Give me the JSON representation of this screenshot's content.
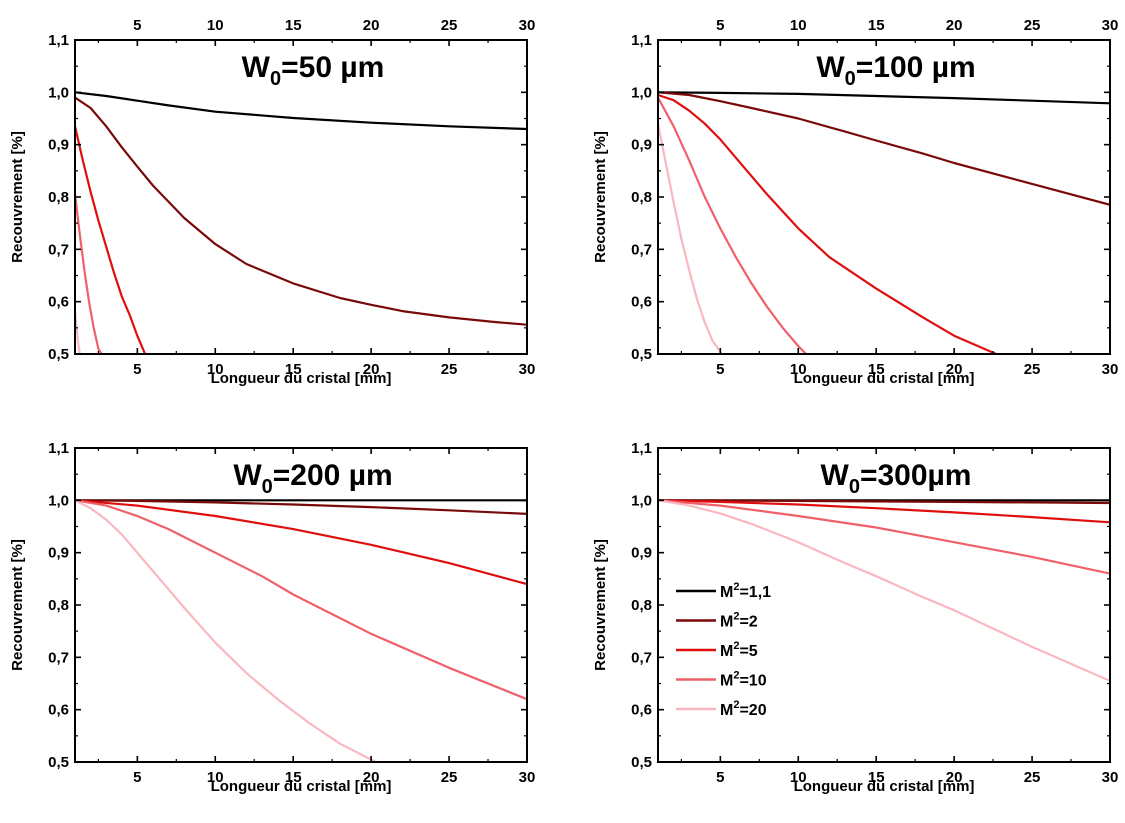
{
  "figure": {
    "xlabel": "Longueur du cristal [mm]",
    "ylabel": "Recouvrement [%]"
  },
  "legend": {
    "placement": "panel 4, left, middle",
    "entries": [
      {
        "base": "M",
        "sup": "2",
        "rest": "=1,1",
        "color": "#000000"
      },
      {
        "base": "M",
        "sup": "2",
        "rest": "=2",
        "color": "#7a0a0a"
      },
      {
        "base": "M",
        "sup": "2",
        "rest": "=5",
        "color": "#e00f0f"
      },
      {
        "base": "M",
        "sup": "2",
        "rest": "=10",
        "color": "#f0606a"
      },
      {
        "base": "M",
        "sup": "2",
        "rest": "=20",
        "color": "#f9b8c0"
      }
    ]
  },
  "chart_data": [
    {
      "type": "line",
      "title": {
        "base": "W",
        "sub": "0",
        "rest": "=50 µm"
      },
      "xlabel": "Longueur du cristal [mm]",
      "ylabel": "Recouvrement [%]",
      "xlim": [
        1,
        30
      ],
      "ylim": [
        0.5,
        1.1
      ],
      "xticks": [
        5,
        10,
        15,
        20,
        25,
        30
      ],
      "xtick_labels": [
        "5",
        "10",
        "15",
        "20",
        "25",
        "30"
      ],
      "top_xtick_labels": true,
      "yticks": [
        0.5,
        0.6,
        0.7,
        0.8,
        0.9,
        1.0,
        1.1
      ],
      "ytick_labels": [
        "0,5",
        "0,6",
        "0,7",
        "0,8",
        "0,9",
        "1,0",
        "1,1"
      ],
      "series": [
        {
          "name": "M²=1,1",
          "color": "#000000",
          "x": [
            1,
            3,
            5,
            7,
            10,
            15,
            20,
            25,
            30
          ],
          "y": [
            1.0,
            0.993,
            0.984,
            0.975,
            0.963,
            0.951,
            0.942,
            0.935,
            0.93
          ]
        },
        {
          "name": "M²=2",
          "color": "#7a0a0a",
          "x": [
            1,
            2,
            3,
            4,
            5,
            6,
            8,
            10,
            12,
            15,
            18,
            20,
            22,
            25,
            28,
            30
          ],
          "y": [
            0.99,
            0.97,
            0.935,
            0.895,
            0.858,
            0.822,
            0.76,
            0.71,
            0.672,
            0.635,
            0.607,
            0.594,
            0.582,
            0.57,
            0.561,
            0.556
          ]
        },
        {
          "name": "M²=5",
          "color": "#e00f0f",
          "x": [
            1,
            1.5,
            2,
            2.5,
            3,
            3.5,
            4,
            4.5,
            5,
            5.5
          ],
          "y": [
            0.935,
            0.87,
            0.81,
            0.755,
            0.705,
            0.655,
            0.61,
            0.575,
            0.535,
            0.5
          ]
        },
        {
          "name": "M²=10",
          "color": "#f0606a",
          "x": [
            1,
            1.3,
            1.6,
            1.9,
            2.2,
            2.5,
            2.7
          ],
          "y": [
            0.805,
            0.73,
            0.66,
            0.6,
            0.55,
            0.51,
            0.5
          ]
        },
        {
          "name": "M²=20",
          "color": "#f9b8c0",
          "x": [
            1,
            1.15,
            1.3
          ],
          "y": [
            0.58,
            0.535,
            0.5
          ]
        }
      ]
    },
    {
      "type": "line",
      "title": {
        "base": "W",
        "sub": "0",
        "rest": "=100 µm"
      },
      "xlabel": "Longueur du cristal [mm]",
      "ylabel": "Recouvrement [%]",
      "xlim": [
        1,
        30
      ],
      "ylim": [
        0.5,
        1.1
      ],
      "xticks": [
        5,
        10,
        15,
        20,
        25,
        30
      ],
      "xtick_labels": [
        "5",
        "10",
        "15",
        "20",
        "25",
        "30"
      ],
      "top_xtick_labels": true,
      "yticks": [
        0.5,
        0.6,
        0.7,
        0.8,
        0.9,
        1.0,
        1.1
      ],
      "ytick_labels": [
        "0,5",
        "0,6",
        "0,7",
        "0,8",
        "0,9",
        "1,0",
        "1,1"
      ],
      "series": [
        {
          "name": "M²=1,1",
          "color": "#000000",
          "x": [
            1,
            5,
            10,
            15,
            20,
            25,
            30
          ],
          "y": [
            1.0,
            0.999,
            0.997,
            0.993,
            0.989,
            0.984,
            0.979
          ]
        },
        {
          "name": "M²=2",
          "color": "#7a0a0a",
          "x": [
            1,
            3,
            5,
            7,
            10,
            13,
            15,
            18,
            20,
            25,
            30
          ],
          "y": [
            1.0,
            0.995,
            0.983,
            0.97,
            0.95,
            0.925,
            0.908,
            0.883,
            0.865,
            0.825,
            0.785
          ]
        },
        {
          "name": "M²=5",
          "color": "#e00f0f",
          "x": [
            1,
            2,
            3,
            4,
            5,
            6,
            8,
            10,
            12,
            15,
            18,
            20,
            22.7
          ],
          "y": [
            0.995,
            0.985,
            0.965,
            0.94,
            0.91,
            0.875,
            0.805,
            0.74,
            0.685,
            0.625,
            0.57,
            0.535,
            0.5
          ]
        },
        {
          "name": "M²=10",
          "color": "#f0606a",
          "x": [
            1,
            2,
            3,
            4,
            5,
            6,
            7,
            8,
            9,
            10,
            10.5
          ],
          "y": [
            0.99,
            0.935,
            0.87,
            0.8,
            0.74,
            0.685,
            0.635,
            0.59,
            0.55,
            0.515,
            0.5
          ]
        },
        {
          "name": "M²=20",
          "color": "#f9b8c0",
          "x": [
            1,
            1.5,
            2,
            2.5,
            3,
            3.5,
            4,
            4.5,
            5.1
          ],
          "y": [
            0.94,
            0.865,
            0.79,
            0.72,
            0.66,
            0.605,
            0.56,
            0.525,
            0.5
          ]
        }
      ]
    },
    {
      "type": "line",
      "title": {
        "base": "W",
        "sub": "0",
        "rest": "=200 µm"
      },
      "xlabel": "Longueur du cristal [mm]",
      "ylabel": "Recouvrement [%]",
      "xlim": [
        1,
        30
      ],
      "ylim": [
        0.5,
        1.1
      ],
      "xticks": [
        5,
        10,
        15,
        20,
        25,
        30
      ],
      "xtick_labels": [
        "5",
        "10",
        "15",
        "20",
        "25",
        "30"
      ],
      "top_xtick_labels": false,
      "yticks": [
        0.5,
        0.6,
        0.7,
        0.8,
        0.9,
        1.0,
        1.1
      ],
      "ytick_labels": [
        "0,5",
        "0,6",
        "0,7",
        "0,8",
        "0,9",
        "1,0",
        "1,1"
      ],
      "series": [
        {
          "name": "M²=1,1",
          "color": "#000000",
          "x": [
            1,
            10,
            20,
            30
          ],
          "y": [
            1.0,
            1.0,
            1.0,
            1.0
          ]
        },
        {
          "name": "M²=2",
          "color": "#7a0a0a",
          "x": [
            1,
            5,
            10,
            15,
            20,
            25,
            30
          ],
          "y": [
            1.0,
            0.999,
            0.996,
            0.992,
            0.987,
            0.981,
            0.974
          ]
        },
        {
          "name": "M²=5",
          "color": "#e00f0f",
          "x": [
            1,
            5,
            10,
            15,
            20,
            25,
            30
          ],
          "y": [
            1.0,
            0.99,
            0.97,
            0.945,
            0.915,
            0.88,
            0.84
          ]
        },
        {
          "name": "M²=10",
          "color": "#f0606a",
          "x": [
            1,
            3,
            5,
            7,
            10,
            13,
            15,
            18,
            20,
            25,
            30
          ],
          "y": [
            1.0,
            0.99,
            0.97,
            0.945,
            0.9,
            0.855,
            0.82,
            0.775,
            0.745,
            0.68,
            0.62
          ]
        },
        {
          "name": "M²=20",
          "color": "#f9b8c0",
          "x": [
            1,
            2,
            3,
            4,
            5,
            6,
            8,
            10,
            12,
            14,
            16,
            18,
            20.3
          ],
          "y": [
            1.0,
            0.985,
            0.963,
            0.935,
            0.9,
            0.865,
            0.795,
            0.728,
            0.67,
            0.62,
            0.575,
            0.535,
            0.5
          ]
        }
      ]
    },
    {
      "type": "line",
      "title": {
        "base": "W",
        "sub": "0",
        "rest": "=300µm"
      },
      "xlabel": "Longueur du cristal [mm]",
      "ylabel": "Recouvrement [%]",
      "xlim": [
        1,
        30
      ],
      "ylim": [
        0.5,
        1.1
      ],
      "xticks": [
        5,
        10,
        15,
        20,
        25,
        30
      ],
      "xtick_labels": [
        "5",
        "10",
        "15",
        "20",
        "25",
        "30"
      ],
      "top_xtick_labels": false,
      "yticks": [
        0.5,
        0.6,
        0.7,
        0.8,
        0.9,
        1.0,
        1.1
      ],
      "ytick_labels": [
        "0,5",
        "0,6",
        "0,7",
        "0,8",
        "0,9",
        "1,0",
        "1,1"
      ],
      "series": [
        {
          "name": "M²=1,1",
          "color": "#000000",
          "x": [
            1,
            10,
            20,
            30
          ],
          "y": [
            1.0,
            1.0,
            1.0,
            1.0
          ]
        },
        {
          "name": "M²=2",
          "color": "#7a0a0a",
          "x": [
            1,
            10,
            20,
            30
          ],
          "y": [
            1.0,
            0.999,
            0.997,
            0.995
          ]
        },
        {
          "name": "M²=5",
          "color": "#e00f0f",
          "x": [
            1,
            5,
            10,
            15,
            20,
            25,
            30
          ],
          "y": [
            1.0,
            0.997,
            0.992,
            0.985,
            0.977,
            0.968,
            0.958
          ]
        },
        {
          "name": "M²=10",
          "color": "#f0606a",
          "x": [
            1,
            5,
            10,
            15,
            20,
            25,
            30
          ],
          "y": [
            1.0,
            0.99,
            0.97,
            0.948,
            0.92,
            0.892,
            0.86
          ]
        },
        {
          "name": "M²=20",
          "color": "#f9b8c0",
          "x": [
            1,
            3,
            5,
            7,
            10,
            13,
            15,
            18,
            20,
            25,
            30
          ],
          "y": [
            1.0,
            0.99,
            0.975,
            0.955,
            0.92,
            0.88,
            0.855,
            0.815,
            0.79,
            0.72,
            0.655
          ]
        }
      ]
    }
  ]
}
